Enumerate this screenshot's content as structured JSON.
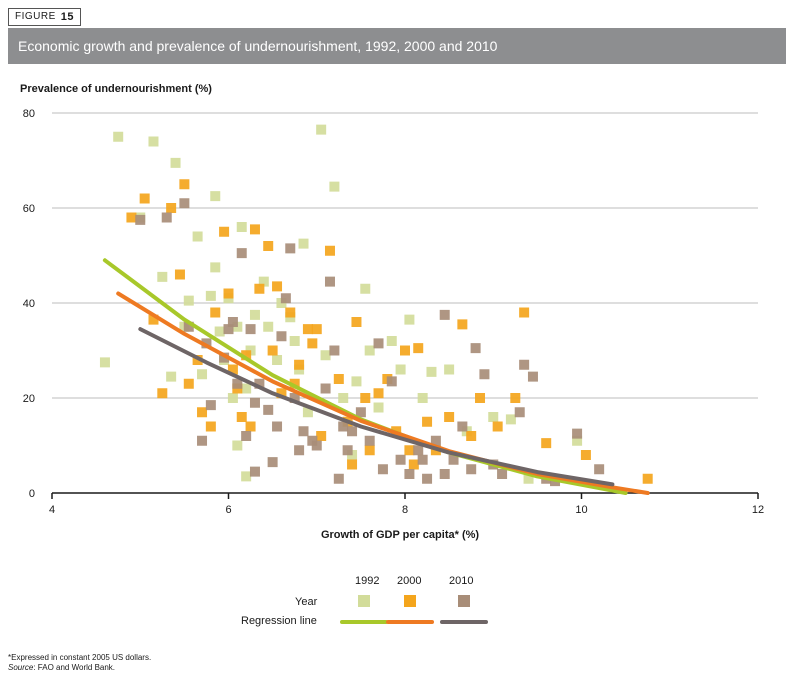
{
  "figure": {
    "label": "FIGURE",
    "number": "15"
  },
  "title": "Economic growth and prevalence of undernourishment, 1992, 2000 and 2010",
  "footnote": "*Expressed in constant 2005 US dollars.",
  "source_label": "Source",
  "source_text": ": FAO and World Bank.",
  "legend": {
    "years": [
      "1992",
      "2000",
      "2010"
    ],
    "year_label": "Year",
    "regression_label": "Regression line"
  },
  "colors": {
    "1992": "#d2dc9a",
    "2000": "#f4a51c",
    "2010": "#a88d78",
    "reg1992": "#a8c82a",
    "reg2000": "#ee7a22",
    "reg2010": "#6e6566"
  },
  "chart_data": {
    "type": "scatter",
    "title": "Economic growth and prevalence of undernourishment, 1992, 2000 and 2010",
    "xlabel": "Growth of GDP per capita* (%)",
    "ylabel": "Prevalence of undernourishment (%)",
    "xlim": [
      4,
      12
    ],
    "ylim": [
      0,
      80
    ],
    "xticks": [
      4,
      6,
      8,
      10,
      12
    ],
    "yticks": [
      0,
      20,
      40,
      60,
      80
    ],
    "grid": "horizontal",
    "legend_position": "bottom",
    "series": [
      {
        "name": "1992",
        "points": [
          [
            4.6,
            27.5
          ],
          [
            4.75,
            75
          ],
          [
            5.0,
            58
          ],
          [
            5.15,
            74
          ],
          [
            5.25,
            45.5
          ],
          [
            5.35,
            24.5
          ],
          [
            5.4,
            69.5
          ],
          [
            5.5,
            35
          ],
          [
            5.55,
            40.5
          ],
          [
            5.65,
            54
          ],
          [
            5.7,
            25
          ],
          [
            5.8,
            41.5
          ],
          [
            5.85,
            62.5
          ],
          [
            5.85,
            47.5
          ],
          [
            5.9,
            34
          ],
          [
            5.95,
            28
          ],
          [
            6.0,
            41
          ],
          [
            6.05,
            20
          ],
          [
            6.1,
            35
          ],
          [
            6.15,
            56
          ],
          [
            6.2,
            22
          ],
          [
            6.25,
            30
          ],
          [
            6.3,
            37.5
          ],
          [
            6.4,
            44.5
          ],
          [
            6.45,
            35
          ],
          [
            6.55,
            28
          ],
          [
            6.6,
            40
          ],
          [
            6.7,
            37
          ],
          [
            6.75,
            32
          ],
          [
            6.8,
            26
          ],
          [
            6.85,
            52.5
          ],
          [
            6.9,
            17
          ],
          [
            7.05,
            76.5
          ],
          [
            7.1,
            29
          ],
          [
            7.2,
            64.5
          ],
          [
            7.3,
            20
          ],
          [
            7.45,
            23.5
          ],
          [
            7.55,
            43
          ],
          [
            7.6,
            30
          ],
          [
            7.7,
            18
          ],
          [
            7.85,
            32
          ],
          [
            7.95,
            26
          ],
          [
            8.05,
            36.5
          ],
          [
            8.2,
            20
          ],
          [
            8.3,
            25.5
          ],
          [
            8.5,
            26
          ],
          [
            8.7,
            13
          ],
          [
            9.0,
            16
          ],
          [
            9.2,
            15.5
          ],
          [
            9.4,
            3
          ],
          [
            9.95,
            11
          ],
          [
            6.1,
            10
          ],
          [
            6.2,
            3.5
          ],
          [
            7.4,
            8
          ]
        ]
      },
      {
        "name": "2000",
        "points": [
          [
            4.9,
            58
          ],
          [
            5.05,
            62
          ],
          [
            5.15,
            36.5
          ],
          [
            5.25,
            21
          ],
          [
            5.35,
            60
          ],
          [
            5.45,
            46
          ],
          [
            5.5,
            65
          ],
          [
            5.55,
            23
          ],
          [
            5.65,
            28
          ],
          [
            5.7,
            17
          ],
          [
            5.8,
            14
          ],
          [
            5.85,
            38
          ],
          [
            5.95,
            55
          ],
          [
            6.0,
            42
          ],
          [
            6.05,
            26
          ],
          [
            6.1,
            22
          ],
          [
            6.15,
            16
          ],
          [
            6.2,
            29
          ],
          [
            6.25,
            14
          ],
          [
            6.3,
            55.5
          ],
          [
            6.35,
            43
          ],
          [
            6.45,
            52
          ],
          [
            6.55,
            43.5
          ],
          [
            6.6,
            21
          ],
          [
            6.7,
            38
          ],
          [
            6.75,
            23
          ],
          [
            6.8,
            27
          ],
          [
            6.9,
            34.5
          ],
          [
            6.95,
            31.5
          ],
          [
            7.0,
            34.5
          ],
          [
            7.05,
            12
          ],
          [
            7.15,
            51
          ],
          [
            7.25,
            24
          ],
          [
            7.35,
            15
          ],
          [
            7.45,
            36
          ],
          [
            7.55,
            20
          ],
          [
            7.6,
            9
          ],
          [
            7.7,
            21
          ],
          [
            7.8,
            24
          ],
          [
            7.9,
            13
          ],
          [
            8.0,
            30
          ],
          [
            8.05,
            9
          ],
          [
            8.15,
            30.5
          ],
          [
            8.25,
            15
          ],
          [
            8.35,
            9
          ],
          [
            8.5,
            16
          ],
          [
            8.65,
            35.5
          ],
          [
            8.75,
            12
          ],
          [
            8.85,
            20
          ],
          [
            9.05,
            14
          ],
          [
            9.25,
            20
          ],
          [
            9.35,
            38
          ],
          [
            9.6,
            10.5
          ],
          [
            10.05,
            8
          ],
          [
            10.75,
            3
          ],
          [
            6.5,
            30
          ],
          [
            7.4,
            6
          ],
          [
            8.1,
            6
          ]
        ]
      },
      {
        "name": "2010",
        "points": [
          [
            5.0,
            57.5
          ],
          [
            5.3,
            58
          ],
          [
            5.5,
            61
          ],
          [
            5.55,
            35
          ],
          [
            5.7,
            11
          ],
          [
            5.75,
            31.5
          ],
          [
            5.8,
            18.5
          ],
          [
            5.95,
            28.5
          ],
          [
            6.0,
            34.5
          ],
          [
            6.05,
            36
          ],
          [
            6.1,
            23
          ],
          [
            6.15,
            50.5
          ],
          [
            6.2,
            12
          ],
          [
            6.25,
            34.5
          ],
          [
            6.3,
            4.5
          ],
          [
            6.35,
            23
          ],
          [
            6.45,
            17.5
          ],
          [
            6.5,
            6.5
          ],
          [
            6.55,
            14
          ],
          [
            6.6,
            33
          ],
          [
            6.65,
            41
          ],
          [
            6.7,
            51.5
          ],
          [
            6.75,
            20
          ],
          [
            6.8,
            9
          ],
          [
            6.85,
            13
          ],
          [
            6.95,
            11
          ],
          [
            7.0,
            10
          ],
          [
            7.1,
            22
          ],
          [
            7.15,
            44.5
          ],
          [
            7.2,
            30
          ],
          [
            7.25,
            3
          ],
          [
            7.3,
            14
          ],
          [
            7.4,
            13
          ],
          [
            7.5,
            17
          ],
          [
            7.6,
            11
          ],
          [
            7.7,
            31.5
          ],
          [
            7.75,
            5
          ],
          [
            7.85,
            23.5
          ],
          [
            7.95,
            7
          ],
          [
            8.05,
            4
          ],
          [
            8.15,
            9
          ],
          [
            8.25,
            3
          ],
          [
            8.35,
            11
          ],
          [
            8.45,
            37.5
          ],
          [
            8.55,
            7
          ],
          [
            8.65,
            14
          ],
          [
            8.75,
            5
          ],
          [
            8.8,
            30.5
          ],
          [
            8.9,
            25
          ],
          [
            9.0,
            6
          ],
          [
            9.1,
            4
          ],
          [
            9.3,
            17
          ],
          [
            9.35,
            27
          ],
          [
            9.45,
            24.5
          ],
          [
            9.6,
            3
          ],
          [
            9.7,
            2.5
          ],
          [
            9.95,
            12.5
          ],
          [
            10.2,
            5
          ],
          [
            6.3,
            19
          ],
          [
            7.35,
            9
          ],
          [
            8.2,
            7
          ],
          [
            8.45,
            4
          ]
        ]
      }
    ],
    "regression_lines": [
      {
        "name": "1992",
        "points": [
          [
            4.6,
            49
          ],
          [
            5.5,
            36.5
          ],
          [
            6.5,
            24.8
          ],
          [
            7.5,
            15.5
          ],
          [
            8.5,
            8.5
          ],
          [
            9.5,
            3.5
          ],
          [
            10.5,
            0
          ]
        ]
      },
      {
        "name": "2000",
        "points": [
          [
            4.75,
            42
          ],
          [
            5.5,
            33.5
          ],
          [
            6.5,
            23.5
          ],
          [
            7.5,
            15.2
          ],
          [
            8.5,
            8.8
          ],
          [
            9.5,
            4.0
          ],
          [
            10.35,
            1.2
          ],
          [
            10.75,
            0
          ]
        ]
      },
      {
        "name": "2010",
        "points": [
          [
            5.0,
            34.5
          ],
          [
            5.75,
            27.5
          ],
          [
            6.5,
            21.0
          ],
          [
            7.5,
            14.0
          ],
          [
            8.5,
            8.5
          ],
          [
            9.5,
            4.4
          ],
          [
            10.35,
            1.8
          ]
        ]
      }
    ]
  }
}
